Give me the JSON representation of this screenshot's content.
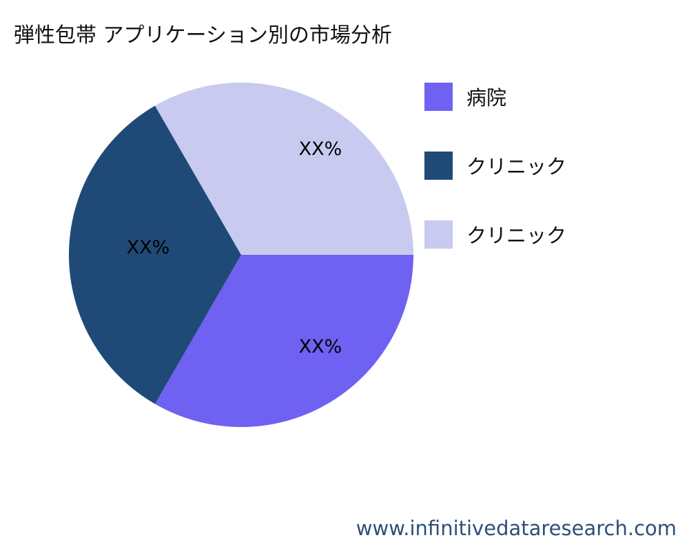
{
  "title": "弾性包帯 アプリケーション別の市場分析",
  "watermark": "www.infinitivedataresearch.com",
  "chart_data": {
    "type": "pie",
    "title": "弾性包帯 アプリケーション別の市場分析",
    "categories": [
      "病院",
      "クリニック",
      "クリニック"
    ],
    "values": [
      33.3,
      33.3,
      33.3
    ],
    "data_labels": [
      "XX%",
      "XX%",
      "XX%"
    ],
    "colors": [
      "#6f61f2",
      "#1f4a78",
      "#c9caf0"
    ],
    "legend_position": "right"
  }
}
